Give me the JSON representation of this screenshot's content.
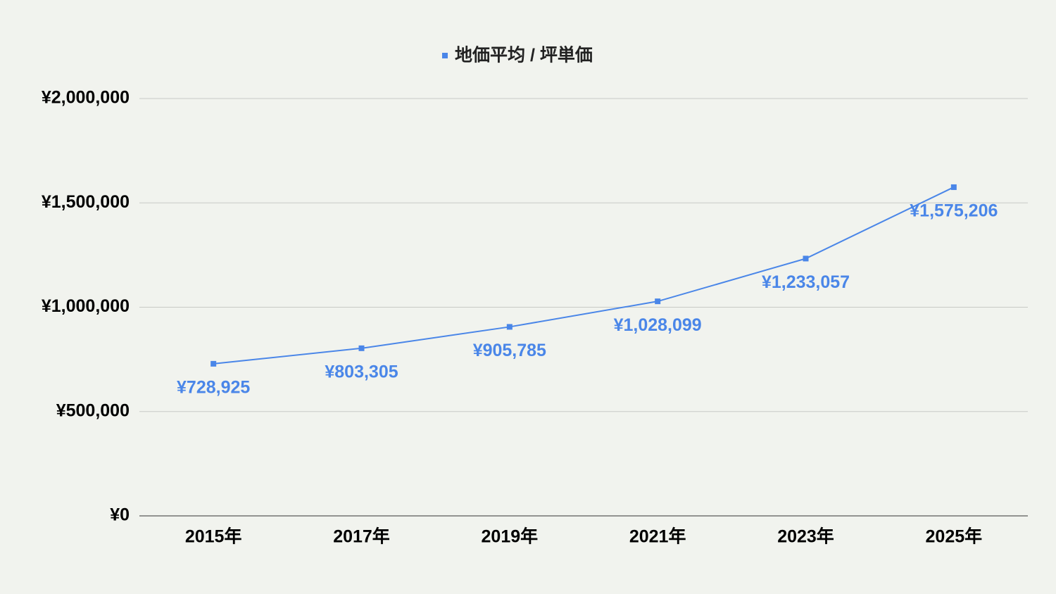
{
  "chart_data": {
    "type": "line",
    "categories": [
      "2015年",
      "2017年",
      "2019年",
      "2021年",
      "2023年",
      "2025年"
    ],
    "series": [
      {
        "name": "地価平均 / 坪単価",
        "color": "#4a86e8",
        "values": [
          728925,
          803305,
          905785,
          1028099,
          1233057,
          1575206
        ],
        "value_labels": [
          "¥728,925",
          "¥803,305",
          "¥905,785",
          "¥1,028,099",
          "¥1,233,057",
          "¥1,575,206"
        ]
      }
    ],
    "ylim": [
      0,
      2000000
    ],
    "yticks": [
      {
        "value": 0,
        "label": "¥0"
      },
      {
        "value": 500000,
        "label": "¥500,000"
      },
      {
        "value": 1000000,
        "label": "¥1,000,000"
      },
      {
        "value": 1500000,
        "label": "¥1,500,000"
      },
      {
        "value": 2000000,
        "label": "¥2,000,000"
      }
    ],
    "grid": true,
    "legend": "top"
  }
}
